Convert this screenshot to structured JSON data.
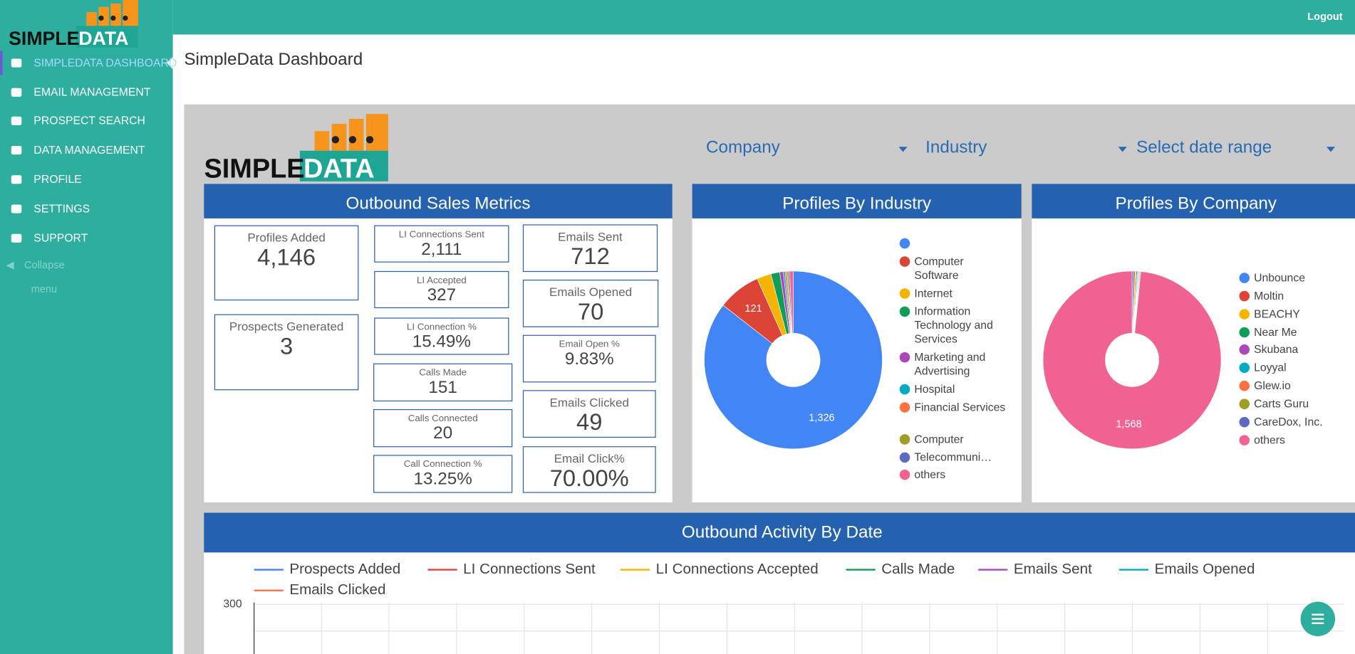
{
  "sidebar": {
    "logo": {
      "word1": "SIMPLE",
      "word2": "DATA"
    },
    "menu": [
      "SIMPLEDATA DASHBOARD",
      "EMAIL MANAGEMENT",
      "PROSPECT SEARCH",
      "DATA MANAGEMENT",
      "PROFILE",
      "SETTINGS",
      "SUPPORT"
    ],
    "collapse": "Collapse",
    "collapse_sub": "menu"
  },
  "header": {
    "logout": "Logout"
  },
  "page_title": "SimpleData Dashboard",
  "filters": [
    "Company",
    "Industry",
    "Select date range"
  ],
  "metrics_card": {
    "title": "Outbound Sales Metrics",
    "metrics": [
      {
        "label": "Profiles Added",
        "value": "4,146"
      },
      {
        "label": "Prospects Generated",
        "value": "3"
      },
      {
        "label": "LI Connections Sent",
        "value": "2,111"
      },
      {
        "label": "LI Accepted",
        "value": "327"
      },
      {
        "label": "LI Connection %",
        "value": "15.49%"
      },
      {
        "label": "Calls Made",
        "value": "151"
      },
      {
        "label": "Calls Connected",
        "value": "20"
      },
      {
        "label": "Call Connection %",
        "value": "13.25%"
      },
      {
        "label": "Emails Sent",
        "value": "712"
      },
      {
        "label": "Emails Opened",
        "value": "70"
      },
      {
        "label": "Email Open %",
        "value": "9.83%"
      },
      {
        "label": "Emails Clicked",
        "value": "49"
      },
      {
        "label": "Email Click%",
        "value": "70.00%"
      }
    ]
  },
  "chart_data": [
    {
      "type": "pie",
      "title": "Profiles By Industry",
      "categories": [
        null,
        "Computer Software",
        "Internet",
        "Information Technology and Services",
        "Marketing and Advertising",
        "Hospital",
        "Financial Services",
        "Computer",
        "Telecommuni…",
        "others"
      ],
      "values": [
        1326,
        121,
        40,
        25,
        10,
        5,
        5,
        4,
        4,
        10
      ],
      "value_labels": [
        "1,326",
        "121",
        null,
        null,
        null,
        null,
        null,
        null,
        null,
        null
      ],
      "colors": [
        "#4285f4",
        "#db4437",
        "#f4b400",
        "#0f9d58",
        "#ab47bc",
        "#00acc1",
        "#ff7043",
        "#9e9d24",
        "#5c6bc0",
        "#f06292"
      ]
    },
    {
      "type": "pie",
      "title": "Profiles By Company",
      "categories": [
        "Unbounce",
        "Moltin",
        "BEACHY",
        "Near Me",
        "Skubana",
        "Loyyal",
        "Glew.io",
        "Carts Guru",
        "CareDox, Inc.",
        "others"
      ],
      "values": [
        5,
        4,
        3,
        3,
        2,
        2,
        2,
        2,
        2,
        1568
      ],
      "value_labels": [
        null,
        null,
        null,
        null,
        null,
        null,
        null,
        null,
        null,
        "1,568"
      ],
      "colors": [
        "#4285f4",
        "#db4437",
        "#f4b400",
        "#0f9d58",
        "#ab47bc",
        "#00acc1",
        "#ff7043",
        "#9e9d24",
        "#5c6bc0",
        "#f06292"
      ]
    },
    {
      "type": "line",
      "title": "Outbound Activity By Date",
      "ylim": [
        0,
        300
      ],
      "yticks": [
        300
      ],
      "grid": true,
      "series": [
        {
          "name": "Prospects Added",
          "color": "#4285f4"
        },
        {
          "name": "LI Connections Sent",
          "color": "#db4437"
        },
        {
          "name": "LI Connections Accepted",
          "color": "#f4b400"
        },
        {
          "name": "Calls Made",
          "color": "#0f9d58"
        },
        {
          "name": "Emails Sent",
          "color": "#ab47bc"
        },
        {
          "name": "Emails Opened",
          "color": "#00acc1"
        },
        {
          "name": "Emails Clicked",
          "color": "#ff7043"
        }
      ]
    }
  ]
}
